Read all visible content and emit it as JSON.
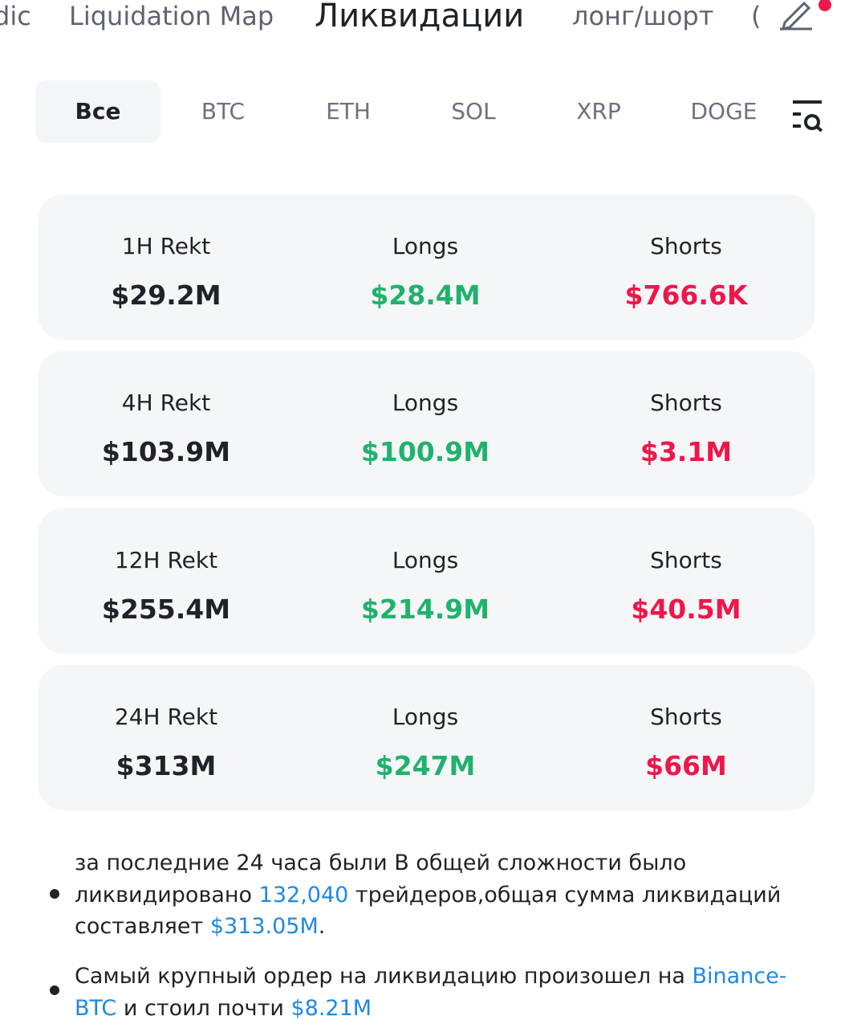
{
  "nav": {
    "tabs": [
      "dic",
      "Liquidation Map",
      "Ликвидации",
      "лонг/шорт",
      "("
    ],
    "active": 2
  },
  "filters": {
    "tabs": [
      "Все",
      "BTC",
      "ETH",
      "SOL",
      "XRP",
      "DOGE"
    ],
    "active": 0
  },
  "cards": [
    {
      "label": "1H  Rekt",
      "total": "$29.2M",
      "longs_label": "Longs",
      "longs": "$28.4M",
      "shorts_label": "Shorts",
      "shorts": "$766.6K"
    },
    {
      "label": "4H Rekt",
      "total": "$103.9M",
      "longs_label": "Longs",
      "longs": "$100.9M",
      "shorts_label": "Shorts",
      "shorts": "$3.1M"
    },
    {
      "label": "12H Rekt",
      "total": "$255.4M",
      "longs_label": "Longs",
      "longs": "$214.9M",
      "shorts_label": "Shorts",
      "shorts": "$40.5M"
    },
    {
      "label": "24H Rekt",
      "total": "$313M",
      "longs_label": "Longs",
      "longs": "$247M",
      "shorts_label": "Shorts",
      "shorts": "$66M"
    }
  ],
  "bullets": [
    {
      "segments": [
        "за последние 24 часа были В общей сложности было ликвидировано ",
        {
          "text": "132,040",
          "highlight": true
        },
        " трейдеров,общая сумма ликвидаций составляет ",
        {
          "text": "$313.05M",
          "highlight": true
        },
        "."
      ]
    },
    {
      "segments": [
        "Самый крупный ордер на ликвидацию произошел на ",
        {
          "text": "Binance-BTC",
          "highlight": true
        },
        " и стоил почти ",
        {
          "text": "$8.21M",
          "highlight": true
        }
      ]
    }
  ]
}
